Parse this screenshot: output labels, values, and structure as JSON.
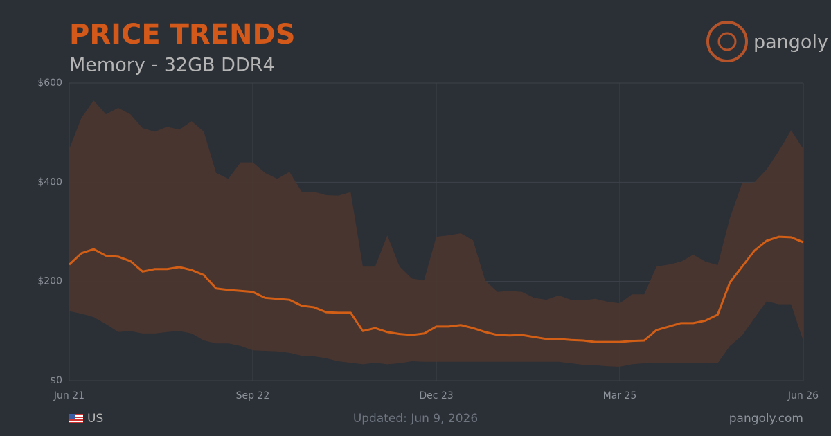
{
  "chart_data": {
    "type": "line",
    "title": "PRICE TRENDS",
    "subtitle": "Memory - 32GB DDR4",
    "brand": "pangoly",
    "footer": {
      "region": "US",
      "updated": "Updated: Jun 9, 2026",
      "site": "pangoly.com"
    },
    "categories": [
      "Jun 21",
      null,
      null,
      null,
      null,
      null,
      null,
      null,
      null,
      null,
      null,
      null,
      null,
      null,
      null,
      "Sep 22",
      null,
      null,
      null,
      null,
      null,
      null,
      null,
      null,
      null,
      null,
      null,
      null,
      null,
      null,
      "Dec 23",
      null,
      null,
      null,
      null,
      null,
      null,
      null,
      null,
      null,
      null,
      null,
      null,
      null,
      null,
      "Mar 25",
      null,
      null,
      null,
      null,
      null,
      null,
      null,
      null,
      null,
      null,
      null,
      null,
      null,
      null,
      "Jun 26"
    ],
    "series": [
      {
        "color": "#d35f16",
        "values": [
          234,
          257,
          265,
          252,
          250,
          241,
          220,
          225,
          225,
          229,
          223,
          213,
          186,
          183,
          181,
          179,
          167,
          165,
          163,
          151,
          148,
          138,
          137,
          137,
          100,
          106,
          98,
          94,
          92,
          95,
          109,
          109,
          112,
          106,
          98,
          92,
          91,
          92,
          88,
          84,
          84,
          82,
          81,
          78,
          78,
          78,
          80,
          81,
          102,
          109,
          116,
          116,
          121,
          133,
          198,
          230,
          262,
          282,
          290,
          289,
          279
        ]
      }
    ],
    "band": {
      "color": "#4a362f",
      "high": [
        467,
        530,
        565,
        537,
        550,
        537,
        509,
        502,
        512,
        506,
        523,
        502,
        419,
        407,
        440,
        440,
        419,
        407,
        421,
        381,
        381,
        374,
        373,
        380,
        230,
        230,
        293,
        230,
        206,
        202,
        290,
        293,
        297,
        283,
        202,
        179,
        181,
        179,
        167,
        163,
        172,
        163,
        162,
        165,
        159,
        156,
        174,
        174,
        230,
        234,
        240,
        254,
        240,
        233,
        328,
        398,
        400,
        426,
        463,
        505,
        467
      ],
      "low": [
        140,
        135,
        128,
        114,
        98,
        100,
        95,
        95,
        98,
        100,
        95,
        81,
        75,
        75,
        70,
        61,
        60,
        59,
        56,
        50,
        49,
        45,
        39,
        36,
        33,
        36,
        33,
        35,
        39,
        38,
        38,
        38,
        38,
        38,
        38,
        38,
        38,
        38,
        38,
        38,
        38,
        35,
        32,
        31,
        29,
        28,
        33,
        35,
        35,
        35,
        35,
        35,
        35,
        35,
        70,
        91,
        126,
        160,
        154,
        154,
        80
      ]
    },
    "ylim": [
      0,
      600
    ],
    "yticks": [
      {
        "value": 0,
        "label": "$0"
      },
      {
        "value": 200,
        "label": "$200"
      },
      {
        "value": 400,
        "label": "$400"
      },
      {
        "value": 600,
        "label": "$600"
      }
    ],
    "grid": true
  }
}
